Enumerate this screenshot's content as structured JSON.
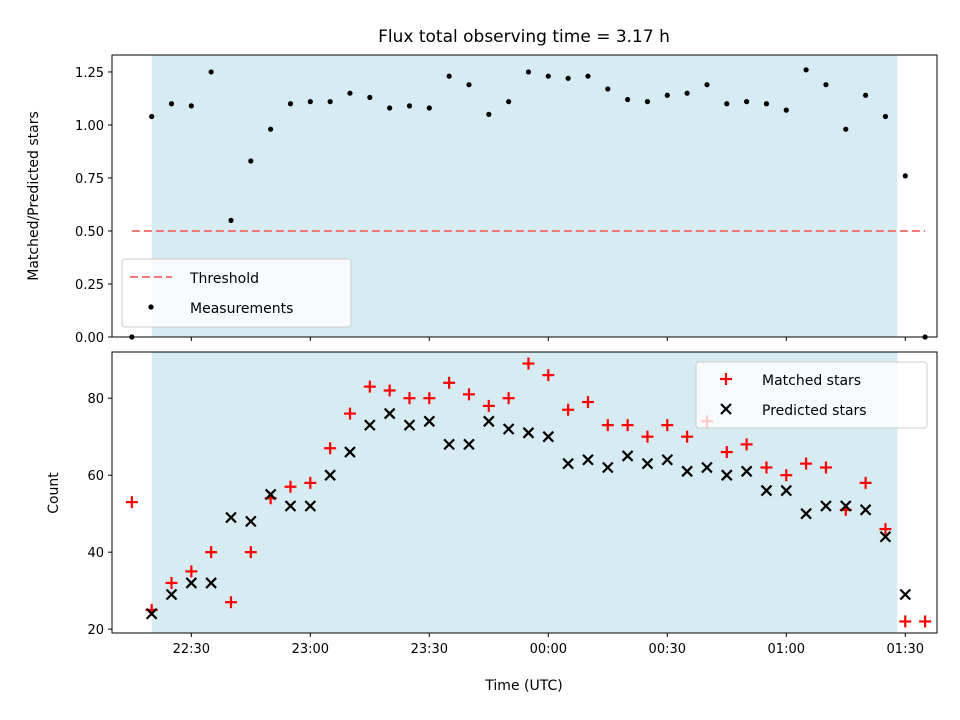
{
  "chart_data": [
    {
      "type": "scatter",
      "title": "Flux total observing time = 3.17 h",
      "xlabel": "",
      "ylabel": "Matched/Predicted stars",
      "ylim": [
        0,
        1.33
      ],
      "yticks": [
        "0.00",
        "0.25",
        "0.50",
        "0.75",
        "1.00",
        "1.25"
      ],
      "legend_position": "lower-left",
      "threshold": {
        "name": "Threshold",
        "value": 0.5,
        "color": "#f07878"
      },
      "series": [
        {
          "name": "Measurements",
          "color": "#000000",
          "x": [
            "22:15",
            "22:20",
            "22:25",
            "22:30",
            "22:35",
            "22:40",
            "22:45",
            "22:50",
            "22:55",
            "23:00",
            "23:05",
            "23:10",
            "23:15",
            "23:20",
            "23:25",
            "23:30",
            "23:35",
            "23:40",
            "23:45",
            "23:50",
            "23:55",
            "00:00",
            "00:05",
            "00:10",
            "00:15",
            "00:20",
            "00:25",
            "00:30",
            "00:35",
            "00:40",
            "00:45",
            "00:50",
            "00:55",
            "01:00",
            "01:05",
            "01:10",
            "01:15",
            "01:20",
            "01:25",
            "01:30",
            "01:35"
          ],
          "values": [
            0.0,
            1.04,
            1.1,
            1.09,
            1.25,
            0.55,
            0.83,
            0.98,
            1.1,
            1.11,
            1.11,
            1.15,
            1.13,
            1.08,
            1.09,
            1.08,
            1.23,
            1.19,
            1.05,
            1.11,
            1.25,
            1.23,
            1.22,
            1.23,
            1.17,
            1.12,
            1.11,
            1.14,
            1.15,
            1.19,
            1.1,
            1.11,
            1.1,
            1.07,
            1.26,
            1.19,
            0.98,
            1.14,
            1.04,
            0.76,
            0.0
          ]
        }
      ]
    },
    {
      "type": "scatter",
      "title": "",
      "xlabel": "Time (UTC)",
      "ylabel": "Count",
      "ylim": [
        19,
        92
      ],
      "yticks": [
        "20",
        "40",
        "60",
        "80"
      ],
      "xticks": [
        "22:30",
        "23:00",
        "23:30",
        "00:00",
        "00:30",
        "01:00",
        "01:30"
      ],
      "legend_position": "top-right",
      "series": [
        {
          "name": "Matched stars",
          "color": "#ff0000",
          "marker": "plus",
          "x": [
            "22:15",
            "22:20",
            "22:25",
            "22:30",
            "22:35",
            "22:40",
            "22:45",
            "22:50",
            "22:55",
            "23:00",
            "23:05",
            "23:10",
            "23:15",
            "23:20",
            "23:25",
            "23:30",
            "23:35",
            "23:40",
            "23:45",
            "23:50",
            "23:55",
            "00:00",
            "00:05",
            "00:10",
            "00:15",
            "00:20",
            "00:25",
            "00:30",
            "00:35",
            "00:40",
            "00:45",
            "00:50",
            "00:55",
            "01:00",
            "01:05",
            "01:10",
            "01:15",
            "01:20",
            "01:25",
            "01:30",
            "01:35"
          ],
          "values": [
            53,
            25,
            32,
            35,
            40,
            27,
            40,
            54,
            57,
            58,
            67,
            76,
            83,
            82,
            80,
            80,
            84,
            81,
            78,
            80,
            89,
            86,
            77,
            79,
            73,
            73,
            70,
            73,
            70,
            74,
            66,
            68,
            62,
            60,
            63,
            62,
            51,
            58,
            46,
            22,
            22
          ]
        },
        {
          "name": "Predicted stars",
          "color": "#000000",
          "marker": "x",
          "x": [
            "22:20",
            "22:25",
            "22:30",
            "22:35",
            "22:40",
            "22:45",
            "22:50",
            "22:55",
            "23:00",
            "23:05",
            "23:10",
            "23:15",
            "23:20",
            "23:25",
            "23:30",
            "23:35",
            "23:40",
            "23:45",
            "23:50",
            "23:55",
            "00:00",
            "00:05",
            "00:10",
            "00:15",
            "00:20",
            "00:25",
            "00:30",
            "00:35",
            "00:40",
            "00:45",
            "00:50",
            "00:55",
            "01:00",
            "01:05",
            "01:10",
            "01:15",
            "01:20",
            "01:25",
            "01:30"
          ],
          "values": [
            24,
            29,
            32,
            32,
            49,
            48,
            55,
            52,
            52,
            60,
            66,
            73,
            76,
            73,
            74,
            68,
            68,
            74,
            72,
            71,
            70,
            63,
            64,
            62,
            65,
            63,
            64,
            61,
            62,
            60,
            61,
            56,
            56,
            50,
            52,
            52,
            51,
            44,
            29
          ]
        }
      ]
    }
  ],
  "shaded_span": {
    "start": "22:20",
    "end": "01:28",
    "color": "#add8e6"
  }
}
